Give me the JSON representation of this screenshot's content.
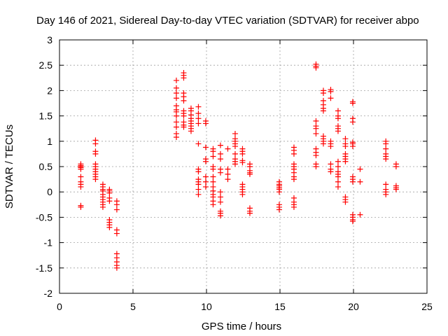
{
  "chart_data": {
    "type": "scatter",
    "title": "Day 146 of 2021, Sidereal Day-to-day VTEC variation (SDTVAR) for receiver abpo",
    "xlabel": "GPS time / hours",
    "ylabel": "SDTVAR / TECUs",
    "xlim": [
      0,
      25
    ],
    "ylim": [
      -2,
      3
    ],
    "xticks": [
      0,
      5,
      10,
      15,
      20,
      25
    ],
    "yticks": [
      -2,
      -1.5,
      -1,
      -0.5,
      0,
      0.5,
      1,
      1.5,
      2,
      2.5,
      3
    ],
    "xtick_labels": [
      "0",
      "5",
      "10",
      "15",
      "20",
      "25"
    ],
    "ytick_labels": [
      "-2",
      "-1.5",
      "-1",
      "-0.5",
      "0",
      "0.5",
      "1",
      "1.5",
      "2",
      "2.5",
      "3"
    ],
    "grid": true,
    "marker": "plus",
    "color": "#ff0000",
    "columns": [
      {
        "x": 1.45,
        "y": [
          0.55,
          0.52,
          0.5,
          0.48,
          0.45,
          0.3,
          0.2,
          0.15,
          0.1,
          -0.27,
          -0.3
        ]
      },
      {
        "x": 2.45,
        "y": [
          1.02,
          0.95,
          0.8,
          0.75,
          0.55,
          0.5,
          0.45,
          0.4,
          0.35,
          0.3,
          0.25
        ]
      },
      {
        "x": 2.95,
        "y": [
          0.15,
          0.1,
          0.05,
          0.02,
          -0.05,
          -0.1,
          -0.15,
          -0.2,
          -0.25,
          -0.3
        ]
      },
      {
        "x": 3.4,
        "y": [
          0.05,
          0.02,
          -0.02,
          -0.12,
          -0.18,
          -0.55,
          -0.6,
          -0.65,
          -0.7
        ]
      },
      {
        "x": 3.9,
        "y": [
          -0.18,
          -0.25,
          -0.35,
          -0.75,
          -0.82,
          -1.22,
          -1.3,
          -1.38,
          -1.45,
          -1.5
        ]
      },
      {
        "x": 7.95,
        "y": [
          2.2,
          2.05,
          1.95,
          1.85,
          1.7,
          1.62,
          1.58,
          1.5,
          1.38,
          1.28,
          1.15,
          1.08
        ]
      },
      {
        "x": 8.45,
        "y": [
          2.35,
          2.3,
          2.25,
          1.95,
          1.88,
          1.8,
          1.6,
          1.55,
          1.5,
          1.38,
          1.32,
          1.28
        ]
      },
      {
        "x": 8.95,
        "y": [
          1.65,
          1.6,
          1.52,
          1.45,
          1.4,
          1.35,
          1.3,
          1.25,
          1.2
        ]
      },
      {
        "x": 9.45,
        "y": [
          1.68,
          1.55,
          1.45,
          1.35,
          0.95,
          0.45,
          0.4,
          0.25,
          0.2,
          0.15,
          0.05,
          -0.05
        ]
      },
      {
        "x": 9.95,
        "y": [
          1.4,
          1.35,
          0.88,
          0.65,
          0.6,
          0.3,
          0.2,
          0.1
        ]
      },
      {
        "x": 10.45,
        "y": [
          0.85,
          0.8,
          0.7,
          0.5,
          0.45,
          0.3,
          0.2,
          0.1,
          0.02,
          -0.05,
          -0.1,
          -0.18,
          -0.25
        ]
      },
      {
        "x": 10.95,
        "y": [
          0.92,
          0.75,
          0.65,
          0.45,
          0.38,
          0.0,
          -0.1,
          -0.2,
          -0.38,
          -0.42,
          -0.47
        ]
      },
      {
        "x": 11.45,
        "y": [
          0.85,
          0.45,
          0.35,
          0.25
        ]
      },
      {
        "x": 11.95,
        "y": [
          1.15,
          1.05,
          1.0,
          0.95,
          0.9,
          0.75,
          0.65,
          0.6,
          0.55
        ]
      },
      {
        "x": 12.45,
        "y": [
          0.85,
          0.8,
          0.75,
          0.62,
          0.58,
          0.15,
          0.1,
          0.05,
          0.0,
          -0.05
        ]
      },
      {
        "x": 12.95,
        "y": [
          0.55,
          0.5,
          0.42,
          0.38,
          0.35,
          -0.32,
          -0.38,
          -0.42
        ]
      },
      {
        "x": 14.95,
        "y": [
          0.2,
          0.15,
          0.12,
          0.08,
          0.05,
          0.0,
          -0.25,
          -0.3,
          -0.35
        ]
      },
      {
        "x": 15.95,
        "y": [
          0.88,
          0.82,
          0.75,
          0.55,
          0.5,
          0.45,
          0.38,
          0.3,
          0.25,
          -0.12,
          -0.2,
          -0.25,
          -0.3
        ]
      },
      {
        "x": 17.45,
        "y": [
          2.52,
          2.48,
          2.45,
          1.4,
          1.3,
          1.25,
          1.15,
          0.85,
          0.78,
          0.72,
          0.55,
          0.5
        ]
      },
      {
        "x": 17.95,
        "y": [
          2.0,
          1.95,
          1.8,
          1.72,
          1.65,
          1.6,
          1.1,
          1.05,
          1.0,
          0.95
        ]
      },
      {
        "x": 18.45,
        "y": [
          2.02,
          1.98,
          1.85,
          1.0,
          0.95,
          0.9,
          0.55,
          0.45,
          0.4
        ]
      },
      {
        "x": 18.95,
        "y": [
          1.6,
          1.5,
          1.45,
          1.3,
          1.25,
          1.2,
          0.6,
          0.5,
          0.4,
          0.35,
          0.3,
          0.2,
          0.1
        ]
      },
      {
        "x": 19.45,
        "y": [
          1.05,
          0.95,
          0.9,
          0.75,
          0.7,
          0.65,
          0.6,
          -0.1,
          -0.15,
          -0.2
        ]
      },
      {
        "x": 19.95,
        "y": [
          1.78,
          1.75,
          1.45,
          1.38,
          0.98,
          0.95,
          0.9,
          0.3,
          0.25,
          0.2,
          -0.45,
          -0.5,
          -0.55,
          -0.58
        ]
      },
      {
        "x": 20.45,
        "y": [
          0.45,
          0.2,
          -0.45
        ]
      },
      {
        "x": 22.2,
        "y": [
          1.0,
          0.95,
          0.85,
          0.75,
          0.7,
          0.65,
          0.15,
          0.05,
          0.0,
          -0.05
        ]
      },
      {
        "x": 22.9,
        "y": [
          0.55,
          0.5,
          0.12,
          0.08,
          0.05
        ]
      }
    ]
  }
}
